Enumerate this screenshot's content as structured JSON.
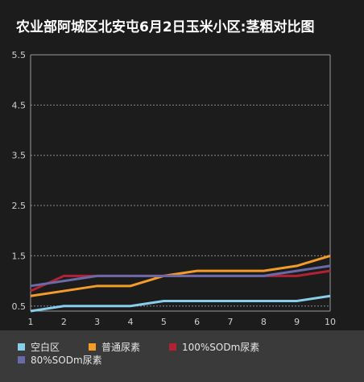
{
  "chart_data": {
    "type": "line",
    "title": "农业部阿城区北安屯6月2日玉米小区:茎粗对比图",
    "xlabel": "",
    "ylabel": "",
    "x": [
      1,
      2,
      3,
      4,
      5,
      6,
      7,
      8,
      9,
      10
    ],
    "ylim": [
      0.4,
      5.5
    ],
    "yticks": [
      "0.5",
      "1.5",
      "2.5",
      "3.5",
      "4.5",
      "5.5"
    ],
    "grid": true,
    "legend_position": "bottom",
    "series": [
      {
        "name": "空白区",
        "color": "#87ceeb",
        "values": [
          0.4,
          0.5,
          0.5,
          0.5,
          0.6,
          0.6,
          0.6,
          0.6,
          0.6,
          0.7
        ]
      },
      {
        "name": "普通尿素",
        "color": "#f39c2a",
        "values": [
          0.7,
          0.8,
          0.9,
          0.9,
          1.1,
          1.2,
          1.2,
          1.2,
          1.3,
          1.5
        ]
      },
      {
        "name": "100%SODm尿素",
        "color": "#b22234",
        "values": [
          0.8,
          1.1,
          1.1,
          1.1,
          1.1,
          1.1,
          1.1,
          1.1,
          1.1,
          1.2
        ]
      },
      {
        "name": "80%SODm尿素",
        "color": "#6a6aa8",
        "values": [
          0.9,
          1.0,
          1.1,
          1.1,
          1.1,
          1.1,
          1.1,
          1.1,
          1.2,
          1.3
        ]
      }
    ]
  }
}
